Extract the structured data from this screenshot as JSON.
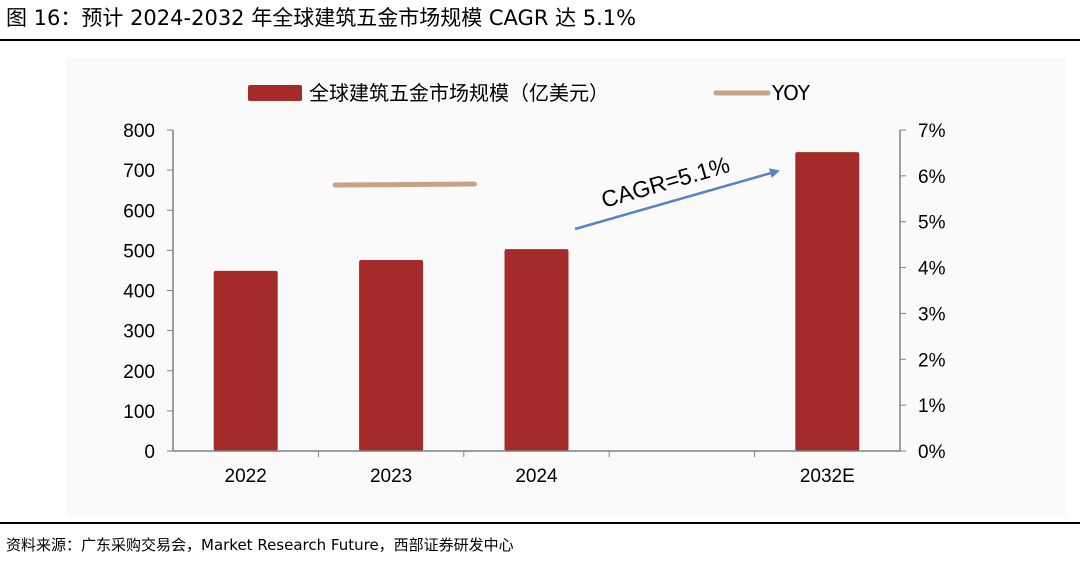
{
  "header": {
    "figure_title": "图 16：预计 2024-2032 年全球建筑五金市场规模 CAGR 达 5.1%"
  },
  "footer": {
    "source": "资料来源：广东采购交易会，Market Research Future，西部证券研发中心"
  },
  "colors": {
    "bar": "#a52a2a",
    "yoy_line": "#c4a484",
    "arrow": "#5b82c4",
    "axis": "#808080",
    "gridline": "#d9d9d9"
  },
  "chart_data": {
    "type": "bar",
    "title": "",
    "categories": [
      "2022",
      "2023",
      "2024",
      "2032E"
    ],
    "series": [
      {
        "name": "全球建筑五金市场规模（亿美元）",
        "type": "bar",
        "axis": "left",
        "values": [
          449,
          476,
          503,
          745
        ]
      },
      {
        "name": "YOY",
        "type": "line",
        "axis": "right",
        "values": [
          null,
          5.8,
          5.8,
          null
        ]
      }
    ],
    "y_left": {
      "min": 0,
      "max": 800,
      "step": 100,
      "ticks": [
        "0",
        "100",
        "200",
        "300",
        "400",
        "500",
        "600",
        "700",
        "800"
      ]
    },
    "y_right": {
      "min": 0,
      "max": 7,
      "step": 1,
      "ticks": [
        "0%",
        "1%",
        "2%",
        "3%",
        "4%",
        "5%",
        "6%",
        "7%"
      ]
    },
    "legend": {
      "position": "top",
      "bar_label": "全球建筑五金市场规模（亿美元）",
      "line_label": "YOY"
    },
    "annotation": {
      "text": "CAGR=5.1%",
      "from_category": "2024",
      "to_category": "2032E"
    },
    "xlabel": "",
    "ylabel": ""
  }
}
